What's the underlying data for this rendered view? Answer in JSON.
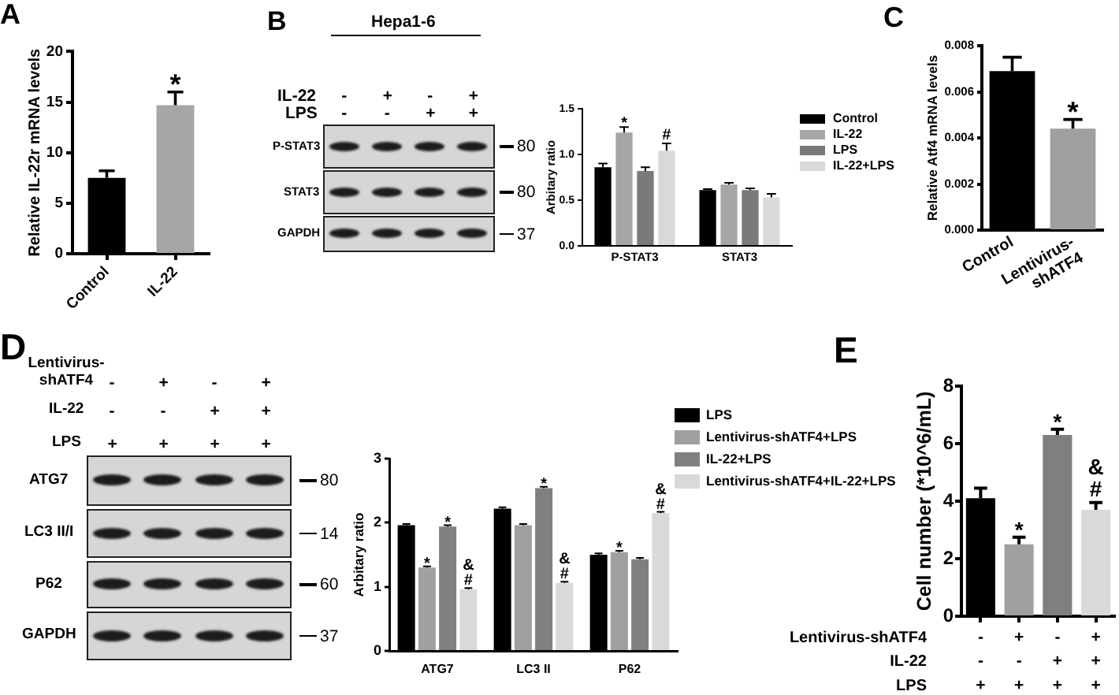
{
  "chart_data": [
    {
      "type": "bar",
      "title": "A",
      "ylabel": "Relative IL-22r mRNA levels",
      "categories": [
        "Control",
        "IL-22"
      ],
      "values": [
        7.5,
        14.7
      ],
      "colors": [
        "#000000",
        "#a6a6a6"
      ],
      "errors": [
        0.7,
        1.3
      ],
      "value_labels": [
        null,
        "*"
      ],
      "ylim": [
        0,
        20
      ],
      "yticks": [
        0,
        5,
        10,
        15,
        20
      ]
    },
    {
      "type": "other",
      "title": "B",
      "subtitle": "Hepa1-6",
      "categories": [
        "-\n-",
        "+\n-",
        "-\n+",
        "+\n+"
      ],
      "annotations": [
        "IL-22",
        "LPS"
      ],
      "y_categories": [
        "P-STAT3",
        "STAT3",
        "GAPDH"
      ],
      "y2_categories": [
        "80",
        "80",
        "37"
      ]
    },
    {
      "type": "bar",
      "ylabel": "Arbitary ratio",
      "categories": [
        "P-STAT3",
        "STAT3"
      ],
      "series": [
        {
          "name": "Control",
          "color": "#000000",
          "values": [
            0.86,
            0.61
          ],
          "errors": [
            0.04,
            0.01
          ]
        },
        {
          "name": "IL-22",
          "color": "#a6a6a6",
          "values": [
            1.24,
            0.67
          ],
          "errors": [
            0.06,
            0.02
          ],
          "value_labels": [
            "*",
            null
          ]
        },
        {
          "name": "LPS",
          "color": "#7a7a7a",
          "values": [
            0.82,
            0.61
          ],
          "errors": [
            0.04,
            0.02
          ]
        },
        {
          "name": "IL-22+LPS",
          "color": "#d9d9d9",
          "values": [
            1.04,
            0.53
          ],
          "errors": [
            0.08,
            0.04
          ],
          "value_labels": [
            "#",
            null
          ]
        }
      ],
      "ylim": [
        0,
        1.5
      ],
      "yticks": [
        {
          "value": 0,
          "label": "0.0"
        },
        0.5,
        {
          "value": 1,
          "label": "1.0"
        },
        1.5
      ],
      "legend": "right"
    },
    {
      "type": "bar",
      "title": "C",
      "ylabel": "Relative Atf4 mRNA levels",
      "categories": [
        "Control",
        "Lentivirus-shATF4"
      ],
      "values": [
        0.0069,
        0.0044
      ],
      "colors": [
        "#000000",
        "#a0a0a0"
      ],
      "errors": [
        0.0006,
        0.0004
      ],
      "value_labels": [
        null,
        "*"
      ],
      "ylim": [
        0,
        0.008
      ],
      "yticks": [
        {
          "value": 0,
          "label": "0.000"
        },
        {
          "value": 0.002,
          "label": "0.002"
        },
        {
          "value": 0.004,
          "label": "0.004"
        },
        {
          "value": 0.006,
          "label": "0.006"
        },
        {
          "value": 0.008,
          "label": "0.008"
        }
      ]
    },
    {
      "type": "other",
      "title": "D",
      "categories": [
        "-\n-\n+",
        "+\n-\n+",
        "-\n+\n+",
        "+\n+\n+"
      ],
      "annotations": [
        "Lentivirus-shATF4",
        "IL-22",
        "LPS"
      ],
      "y_categories": [
        "ATG7",
        "LC3 II/I",
        "P62",
        "GAPDH"
      ],
      "y2_categories": [
        "80",
        "14",
        "60",
        "37"
      ]
    },
    {
      "type": "bar",
      "ylabel": "Arbitary ratio",
      "categories": [
        "ATG7",
        "LC3 II",
        "P62"
      ],
      "series": [
        {
          "name": "LPS",
          "color": "#000000",
          "values": [
            1.96,
            2.22,
            1.5
          ],
          "errors": [
            0.02,
            0.02,
            0.02
          ]
        },
        {
          "name": "Lentivirus-shATF4+LPS",
          "color": "#a0a0a0",
          "values": [
            1.3,
            1.96,
            1.54
          ],
          "errors": [
            0.02,
            0.02,
            0.02
          ],
          "value_labels": [
            "*",
            null,
            "*"
          ]
        },
        {
          "name": "IL-22+LPS",
          "color": "#808080",
          "values": [
            1.94,
            2.54,
            1.43
          ],
          "errors": [
            0.02,
            0.02,
            0.02
          ],
          "value_labels": [
            "*",
            "*",
            null
          ]
        },
        {
          "name": "Lentivirus-shATF4+IL-22+LPS",
          "color": "#d9d9d9",
          "values": [
            0.96,
            1.06,
            2.15
          ],
          "errors": [
            0.02,
            0.02,
            0.02
          ],
          "value_labels": [
            "&\n#",
            "&\n#",
            "&\n#"
          ]
        }
      ],
      "ylim": [
        0,
        3
      ],
      "yticks": [
        0,
        1,
        2,
        3
      ],
      "legend": "right"
    },
    {
      "type": "bar",
      "title": "E",
      "ylabel": "Cell number (*10^6/mL)",
      "categories": [
        "-\n-\n+",
        "+\n-\n+",
        "-\n+\n+",
        "+\n+\n+"
      ],
      "annotations": [
        "Lentivirus-shATF4",
        "IL-22",
        "LPS"
      ],
      "values": [
        4.1,
        2.5,
        6.3,
        3.7
      ],
      "colors": [
        "#000000",
        "#a0a0a0",
        "#7f7f7f",
        "#d9d9d9"
      ],
      "errors": [
        0.35,
        0.25,
        0.2,
        0.25
      ],
      "value_labels": [
        null,
        "*",
        "*",
        "&\n#"
      ],
      "ylim": [
        0,
        8
      ],
      "yticks": [
        0,
        2,
        4,
        6,
        8
      ]
    }
  ]
}
